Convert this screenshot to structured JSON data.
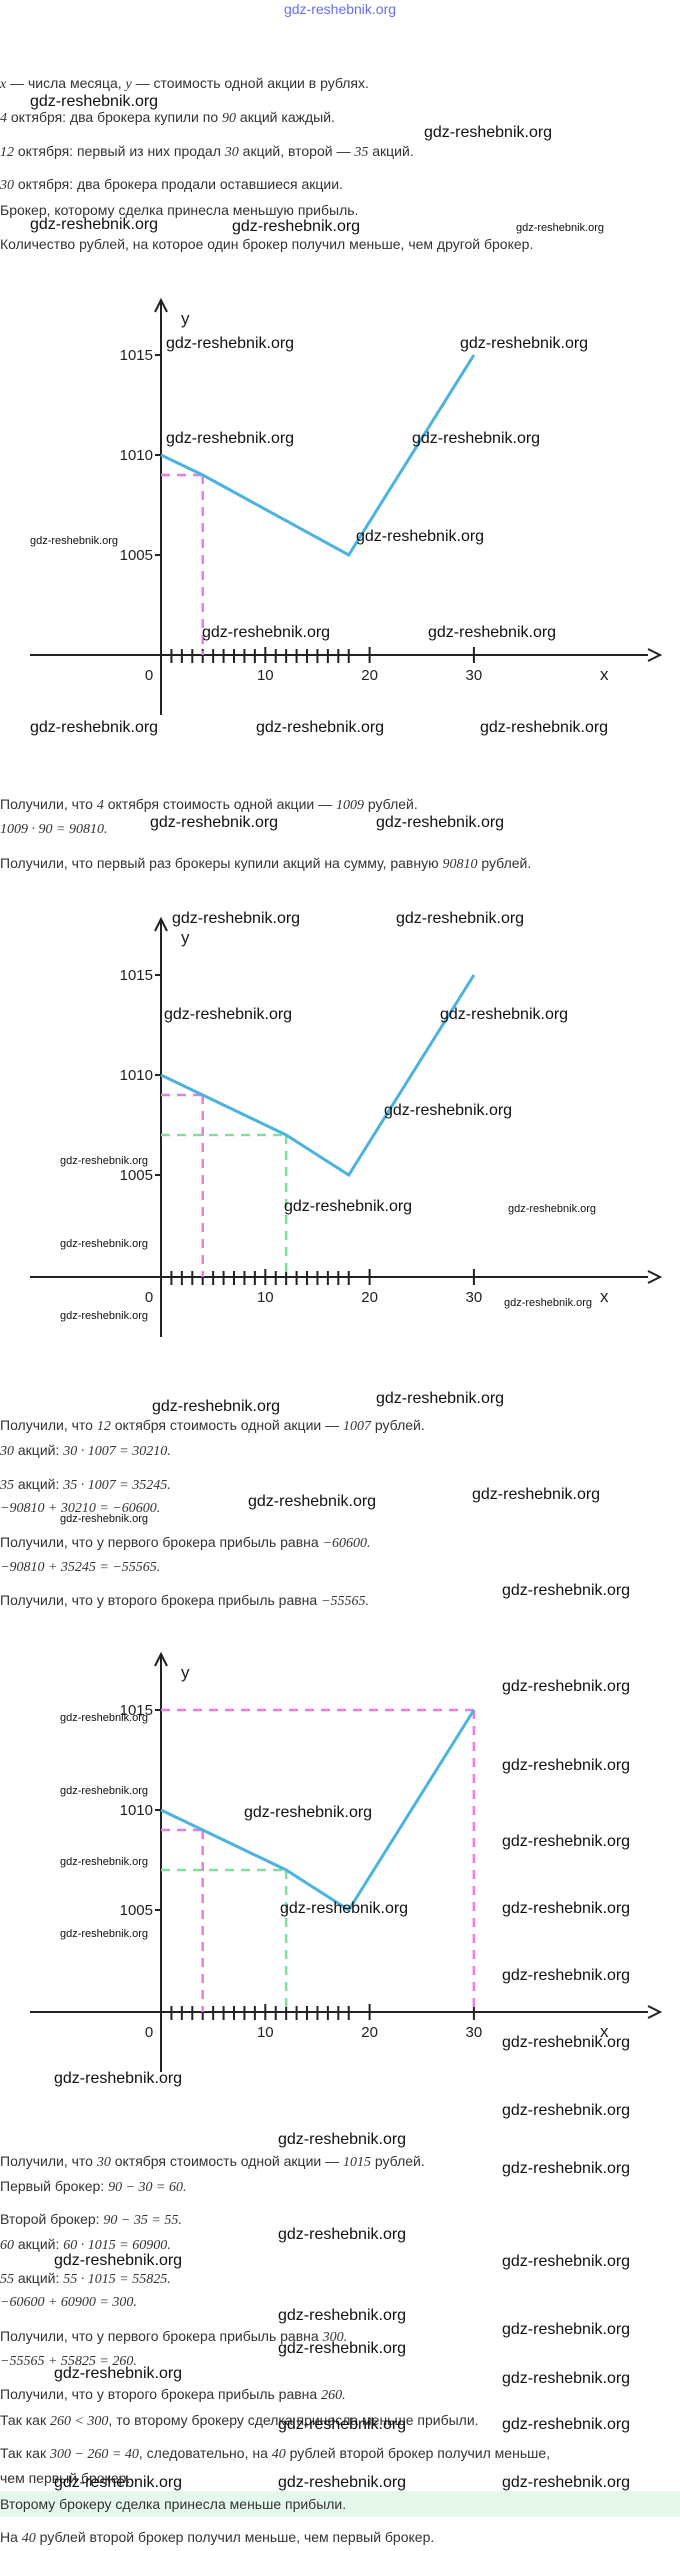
{
  "site": "gdz-reshebnik.org",
  "watermark": "gdz-reshebnik.org",
  "colors": {
    "line": "#4cb3e0",
    "magenta": "#e87de6",
    "green": "#7ee09a",
    "highlight": "#e6f7ec"
  },
  "intro": {
    "line1_x": "x",
    "line1_a": " — числа месяца, ",
    "line1_y": "y",
    "line1_b": " — стоимость одной акции в рублях.",
    "line2_n": "4",
    "line2_a": " октября: два брокера купили по ",
    "line2_m": "90",
    "line2_b": " акций каждый.",
    "line3_n": "12",
    "line3_a": " октября: первый из них продал ",
    "line3_m": "30",
    "line3_b": " акций, второй — ",
    "line3_k": "35",
    "line3_c": " акций.",
    "line4_n": "30",
    "line4_a": " октября: два брокера продали оставшиеся акции.",
    "line5": "Брокер, которому сделка принесла меньшую прибыль.",
    "line6": "Количество рублей, на которое один брокер получил меньше, чем другой брокер."
  },
  "chart_data": [
    {
      "type": "line",
      "x": [
        0,
        4,
        18,
        30
      ],
      "y": [
        1010,
        1009,
        1005,
        1015
      ],
      "xlabel": "x",
      "ylabel": "y",
      "xticks": [
        0,
        10,
        20,
        30
      ],
      "yticks": [
        1005,
        1010,
        1015
      ],
      "markers_x": [
        4
      ]
    },
    {
      "type": "line",
      "x": [
        0,
        4,
        12,
        18,
        30
      ],
      "y": [
        1010,
        1009,
        1007,
        1005,
        1015
      ],
      "xlabel": "x",
      "ylabel": "y",
      "xticks": [
        0,
        10,
        20,
        30
      ],
      "yticks": [
        1005,
        1010,
        1015
      ],
      "markers_x": [
        4,
        12
      ]
    },
    {
      "type": "line",
      "x": [
        0,
        4,
        12,
        18,
        30
      ],
      "y": [
        1010,
        1009,
        1007,
        1005,
        1015
      ],
      "xlabel": "x",
      "ylabel": "y",
      "xticks": [
        0,
        10,
        20,
        30
      ],
      "yticks": [
        1005,
        1010,
        1015
      ],
      "markers_x": [
        4,
        12,
        30
      ]
    }
  ],
  "s1": {
    "a": "Получили, что ",
    "n": "4",
    "b": " октября стоимость одной акции — ",
    "v": "1009",
    "c": " рублей.",
    "calc": "1009 · 90 = 90810.",
    "d": "Получили, что первый раз брокеры купили акций на сумму, равную ",
    "sum": "90810",
    "e": " рублей."
  },
  "s2": {
    "a": "Получили, что ",
    "n": "12",
    "b": " октября стоимость одной акции — ",
    "v": "1007",
    "c": " рублей.",
    "l2_n": "30",
    "l2_a": " акций: ",
    "l2_calc": "30 · 1007 = 30210.",
    "l3_n": "35",
    "l3_a": " акций: ",
    "l3_calc": "35 · 1007 = 35245.",
    "l4": "−90810 + 30210 = −60600.",
    "l5_a": "Получили, что у первого брокера прибыль равна ",
    "l5_v": "−60600.",
    "l6": "−90810 + 35245 = −55565.",
    "l7_a": "Получили, что у второго брокера прибыль равна ",
    "l7_v": "−55565."
  },
  "s3": {
    "a": "Получили, что ",
    "n": "30",
    "b": " октября стоимость одной акции — ",
    "v": "1015",
    "c": " рублей.",
    "p1_a": "Первый брокер: ",
    "p1": "90 − 30 = 60.",
    "p2_a": "Второй брокер: ",
    "p2": "90 − 35 = 55.",
    "q1_n": "60",
    "q1_a": " акций: ",
    "q1": "60 · 1015 = 60900.",
    "q2_n": "55",
    "q2_a": " акций: ",
    "q2": "55 · 1015 = 55825.",
    "r1": "−60600 + 60900 = 300.",
    "r2_a": "Получили, что у первого брокера прибыль равна ",
    "r2_v": "300.",
    "r3": "−55565 + 55825 = 260.",
    "r4_a": "Получили, что у второго брокера прибыль равна ",
    "r4_v": "260.",
    "r5_a": "Так как ",
    "r5_m": "260 < 300",
    "r5_b": ", то второму брокеру сделка принесла меньше прибыли.",
    "r6_a": "Так как ",
    "r6_m": "300 − 260 = 40",
    "r6_b": ", следовательно, на ",
    "r6_n": "40",
    "r6_c": " рублей второй брокер получил меньше,",
    "r7": "чем первый брокер."
  },
  "answer": {
    "a1": "Второму брокеру сделка принесла меньше прибыли.",
    "a2_a": "На ",
    "a2_n": "40",
    "a2_b": " рублей второй брокер получил меньше, чем первый брокер."
  }
}
